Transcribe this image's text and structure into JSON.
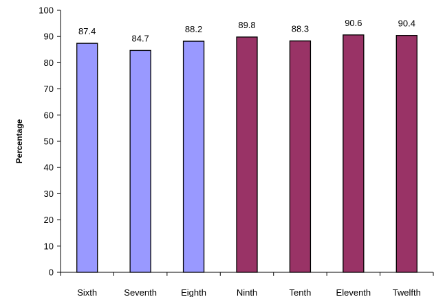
{
  "chart_data": {
    "type": "bar",
    "title": "",
    "xlabel": "",
    "ylabel": "Percentage",
    "ylim": [
      0,
      100
    ],
    "yticks": [
      0,
      10,
      20,
      30,
      40,
      50,
      60,
      70,
      80,
      90,
      100
    ],
    "grid": false,
    "categories": [
      "Sixth",
      "Seventh",
      "Eighth",
      "Ninth",
      "Tenth",
      "Eleventh",
      "Twelfth"
    ],
    "values": [
      87.4,
      84.7,
      88.2,
      89.8,
      88.3,
      90.6,
      90.4
    ],
    "data_labels": [
      "87.4",
      "84.7",
      "88.2",
      "89.8",
      "88.3",
      "90.6",
      "90.4"
    ],
    "bar_colors": [
      "#9999ff",
      "#9999ff",
      "#9999ff",
      "#993366",
      "#993366",
      "#993366",
      "#993366"
    ],
    "outline_color": "#000000"
  }
}
